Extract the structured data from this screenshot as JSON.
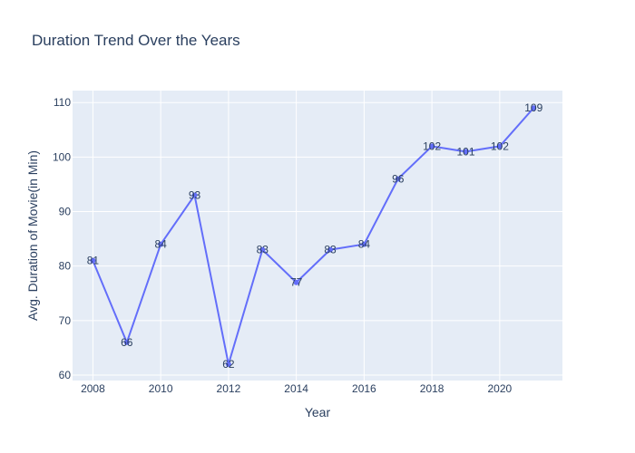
{
  "chart_data": {
    "type": "line",
    "title": "Duration Trend Over the Years",
    "xlabel": "Year",
    "ylabel": "Avg. Duration of Movie(in Min)",
    "x": [
      2008,
      2009,
      2010,
      2011,
      2012,
      2013,
      2014,
      2015,
      2016,
      2017,
      2018,
      2019,
      2020,
      2021
    ],
    "series": [
      {
        "values": [
          81,
          66,
          84,
          93,
          62,
          83,
          77,
          83,
          84,
          96,
          102,
          101,
          102,
          109
        ]
      }
    ],
    "xlim": [
      2007.4,
      2021.85
    ],
    "ylim": [
      59,
      112.2
    ],
    "xticks": [
      2008,
      2010,
      2012,
      2014,
      2016,
      2018,
      2020
    ],
    "yticks": [
      60,
      70,
      80,
      90,
      100,
      110
    ],
    "grid": true,
    "colors": {
      "line": "#636efa",
      "plot_bg": "#e5ecf6",
      "grid": "#ffffff",
      "text": "#2a3f5f"
    }
  }
}
